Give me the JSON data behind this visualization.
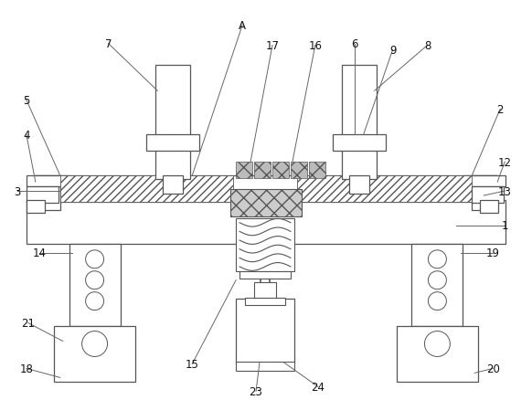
{
  "background_color": "#ffffff",
  "line_color": "#555555",
  "fig_width": 5.82,
  "fig_height": 4.39,
  "dpi": 100
}
